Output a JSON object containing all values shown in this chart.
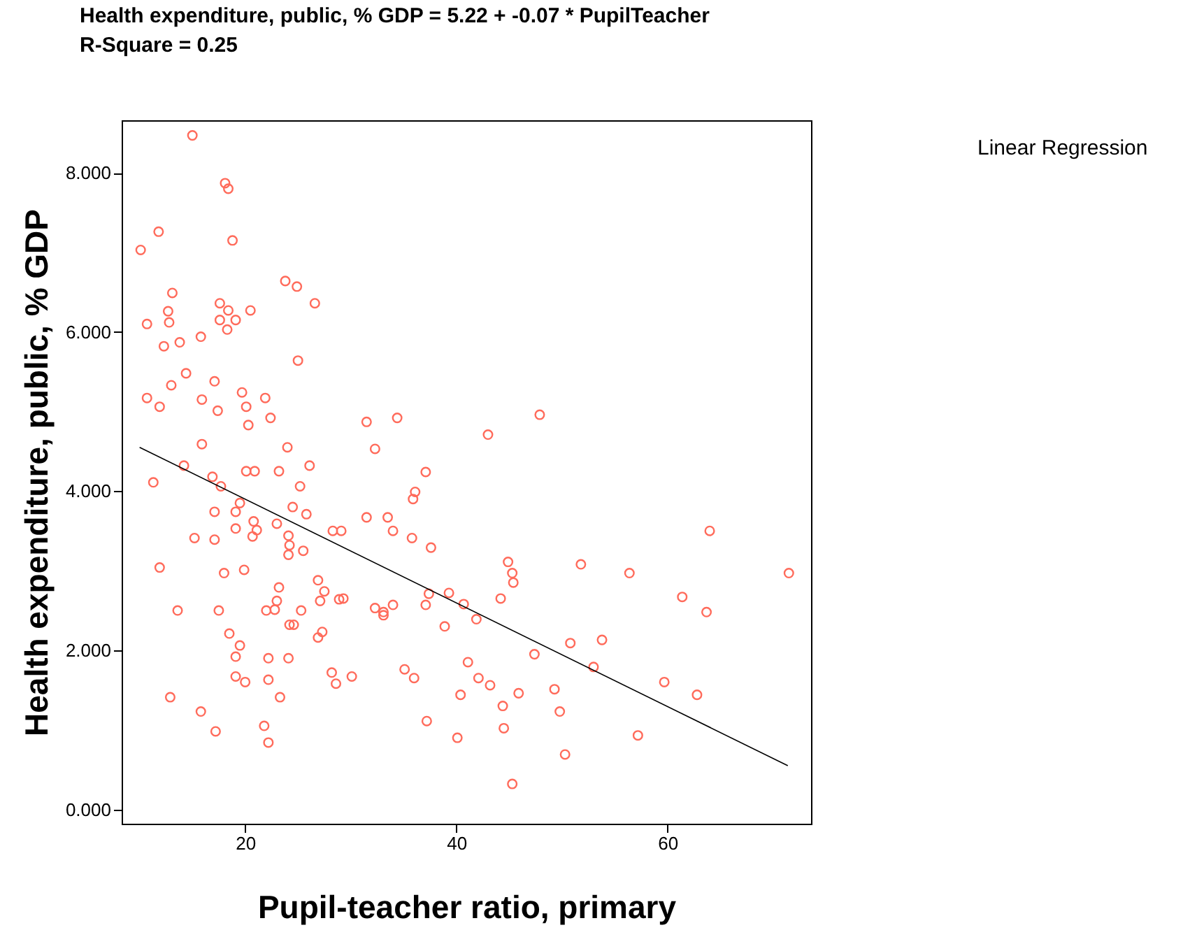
{
  "chart_data": {
    "type": "scatter",
    "title": "Health expenditure, public, % GDP = 5.22 + -0.07 * PupilTeacher",
    "subtitle": "R-Square = 0.25",
    "xlabel": "Pupil-teacher ratio, primary",
    "ylabel": "Health expenditure, public, % GDP",
    "xlim": [
      8.3,
      73.6
    ],
    "xticks": [
      20,
      40,
      60
    ],
    "ylim": [
      -0.18,
      8.66
    ],
    "yticks": [
      {
        "value": 0,
        "label": "0.000"
      },
      {
        "value": 2,
        "label": "2.000"
      },
      {
        "value": 4,
        "label": "4.000"
      },
      {
        "value": 6,
        "label": "6.000"
      },
      {
        "value": 8,
        "label": "8.000"
      }
    ],
    "grid": false,
    "legend": "top right",
    "series": [
      {
        "marker": "circle",
        "color": "#ff6b5b",
        "x": [
          15.0,
          18.1,
          18.4,
          11.8,
          10.1,
          18.8,
          13.1,
          23.8,
          24.9,
          26.6,
          17.6,
          12.7,
          20.5,
          18.4,
          10.7,
          17.6,
          19.1,
          12.8,
          18.3,
          15.8,
          13.8,
          12.3,
          25.0,
          14.4,
          17.1,
          13.0,
          19.7,
          21.9,
          10.7,
          15.9,
          11.9,
          20.1,
          17.4,
          22.4,
          31.5,
          34.4,
          47.9,
          20.3,
          43.0,
          15.9,
          32.3,
          24.0,
          26.1,
          14.2,
          20.1,
          20.9,
          23.2,
          37.1,
          16.9,
          11.3,
          17.7,
          25.2,
          36.1,
          35.9,
          19.5,
          24.5,
          17.1,
          19.1,
          25.8,
          31.5,
          33.5,
          20.8,
          23.0,
          19.1,
          34.0,
          21.1,
          28.3,
          29.1,
          20.7,
          64.0,
          15.2,
          17.1,
          24.1,
          24.2,
          35.8,
          24.1,
          37.6,
          25.5,
          44.9,
          51.8,
          18.0,
          19.9,
          11.9,
          45.3,
          56.4,
          71.5,
          26.9,
          45.4,
          23.2,
          27.5,
          37.4,
          39.3,
          28.9,
          27.1,
          29.3,
          23.0,
          44.2,
          61.4,
          37.1,
          40.7,
          34.0,
          32.3,
          33.1,
          33.1,
          13.6,
          17.5,
          22.0,
          22.8,
          25.3,
          41.9,
          63.7,
          24.6,
          24.2,
          38.9,
          18.5,
          26.9,
          19.5,
          27.3,
          50.8,
          53.8,
          47.4,
          19.1,
          22.2,
          24.1,
          41.1,
          35.1,
          53.0,
          19.1,
          28.2,
          30.1,
          36.0,
          42.1,
          20.0,
          22.2,
          28.6,
          43.2,
          59.7,
          49.3,
          12.9,
          23.3,
          40.4,
          45.9,
          62.8,
          44.4,
          49.8,
          15.8,
          37.2,
          21.8,
          44.5,
          17.2,
          57.2,
          40.1,
          22.2,
          50.3,
          45.3
        ],
        "values": [
          8.47,
          7.87,
          7.8,
          7.26,
          7.03,
          7.15,
          6.49,
          6.64,
          6.57,
          6.36,
          6.36,
          6.26,
          6.27,
          6.27,
          6.1,
          6.15,
          6.15,
          6.12,
          6.03,
          5.94,
          5.87,
          5.82,
          5.64,
          5.48,
          5.38,
          5.33,
          5.24,
          5.17,
          5.17,
          5.15,
          5.06,
          5.06,
          5.01,
          4.92,
          4.87,
          4.92,
          4.96,
          4.83,
          4.71,
          4.59,
          4.53,
          4.55,
          4.32,
          4.32,
          4.25,
          4.25,
          4.25,
          4.24,
          4.18,
          4.11,
          4.06,
          4.06,
          3.99,
          3.9,
          3.85,
          3.8,
          3.74,
          3.74,
          3.71,
          3.67,
          3.67,
          3.62,
          3.59,
          3.53,
          3.5,
          3.51,
          3.5,
          3.5,
          3.43,
          3.5,
          3.41,
          3.39,
          3.44,
          3.32,
          3.41,
          3.2,
          3.29,
          3.25,
          3.11,
          3.08,
          2.97,
          3.01,
          3.04,
          2.97,
          2.97,
          2.97,
          2.88,
          2.85,
          2.79,
          2.74,
          2.71,
          2.72,
          2.64,
          2.62,
          2.65,
          2.62,
          2.65,
          2.67,
          2.57,
          2.58,
          2.57,
          2.53,
          2.48,
          2.44,
          2.5,
          2.5,
          2.5,
          2.51,
          2.5,
          2.39,
          2.48,
          2.32,
          2.32,
          2.3,
          2.21,
          2.16,
          2.06,
          2.23,
          2.09,
          2.13,
          1.95,
          1.92,
          1.9,
          1.9,
          1.85,
          1.76,
          1.79,
          1.67,
          1.72,
          1.67,
          1.65,
          1.65,
          1.6,
          1.63,
          1.58,
          1.56,
          1.6,
          1.51,
          1.41,
          1.41,
          1.44,
          1.46,
          1.44,
          1.3,
          1.23,
          1.23,
          1.11,
          1.05,
          1.02,
          0.98,
          0.93,
          0.9,
          0.84,
          0.69,
          0.32
        ]
      },
      {
        "type": "line",
        "name": "Linear Regression",
        "color": "#000000",
        "x": [
          10.0,
          71.4
        ],
        "values": [
          4.55,
          0.55
        ]
      }
    ]
  }
}
